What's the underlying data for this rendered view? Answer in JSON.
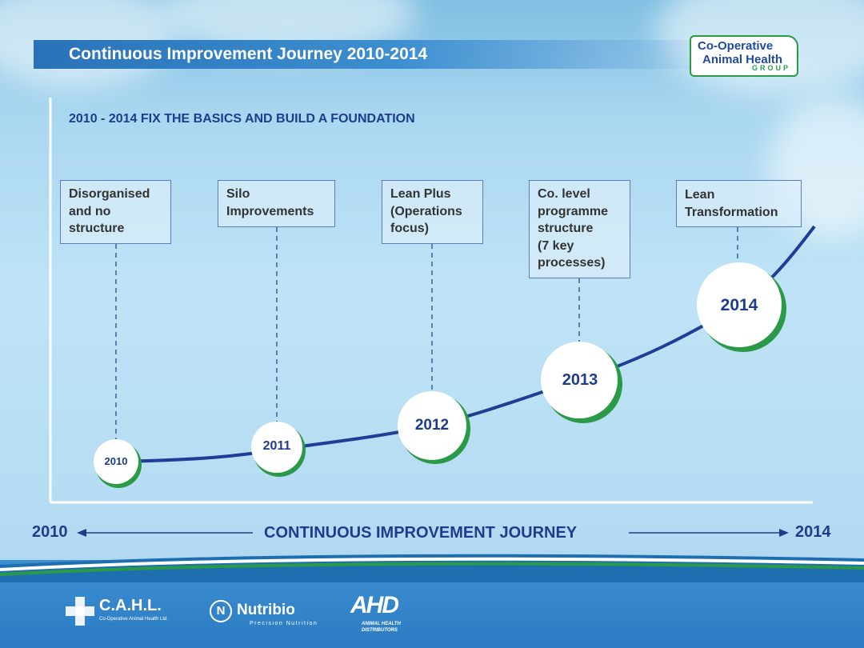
{
  "title": "Continuous Improvement Journey 2010-2014",
  "logo": {
    "line1": "Co-Operative",
    "line2": "Animal Health",
    "line3": "GROUP"
  },
  "headline": "2010 - 2014 FIX THE BASICS AND BUILD A FOUNDATION",
  "stages": [
    {
      "lines": [
        "Disorganised",
        "and no",
        "structure"
      ],
      "year": "2010"
    },
    {
      "lines": [
        "Silo",
        "Improvements"
      ],
      "year": "2011"
    },
    {
      "lines": [
        "Lean Plus",
        "(Operations",
        "focus)"
      ],
      "year": "2012"
    },
    {
      "lines": [
        "Co. level",
        "programme",
        "structure",
        "(7 key",
        "processes)"
      ],
      "year": "2013"
    },
    {
      "lines": [
        "Lean",
        "Transformation"
      ],
      "year": "2014"
    }
  ],
  "axis": {
    "start": "2010",
    "end": "2014",
    "label": "CONTINUOUS IMPROVEMENT JOURNEY"
  },
  "footer_logos": {
    "cahl": {
      "name": "C.A.H.L.",
      "sub": "Co-Operative Animal Health Ltd."
    },
    "nutribio": {
      "name": "Nutribio",
      "sub": "Precision Nutrition"
    },
    "ahd": {
      "name": "AHD",
      "sub": "ANIMAL HEALTH DISTRIBUTORS"
    }
  },
  "colors": {
    "navy": "#1e3c8c",
    "curve": "#1e3f95",
    "green": "#2a9a48",
    "title_bar": "#2a72b8"
  }
}
